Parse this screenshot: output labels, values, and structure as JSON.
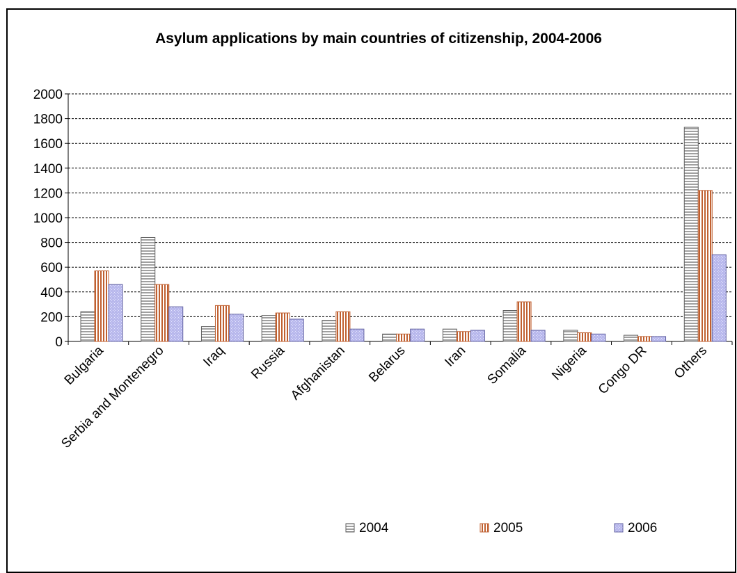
{
  "chart_data": {
    "type": "bar",
    "title": "Asylum applications by main countries of citizenship, 2004-2006",
    "xlabel": "",
    "ylabel": "",
    "ylim": [
      0,
      2000
    ],
    "yticks": [
      0,
      200,
      400,
      600,
      800,
      1000,
      1200,
      1400,
      1600,
      1800,
      2000
    ],
    "grid": true,
    "legend_position": "bottom",
    "categories": [
      "Bulgaria",
      "Serbia and Montenegro",
      "Iraq",
      "Russia",
      "Afghanistan",
      "Belarus",
      "Iran",
      "Somalia",
      "Nigeria",
      "Congo DR",
      "Others"
    ],
    "series": [
      {
        "name": "2004",
        "pattern": "horizontal-stripes",
        "color": "#a0a0a0",
        "values": [
          240,
          840,
          120,
          210,
          170,
          60,
          100,
          250,
          90,
          50,
          1730
        ]
      },
      {
        "name": "2005",
        "pattern": "vertical-stripes",
        "color": "#c06030",
        "values": [
          570,
          460,
          290,
          230,
          240,
          60,
          80,
          320,
          70,
          40,
          1220
        ]
      },
      {
        "name": "2006",
        "pattern": "dotted",
        "color": "#b8b8ec",
        "values": [
          460,
          280,
          220,
          180,
          100,
          100,
          90,
          90,
          60,
          40,
          700
        ]
      }
    ]
  }
}
